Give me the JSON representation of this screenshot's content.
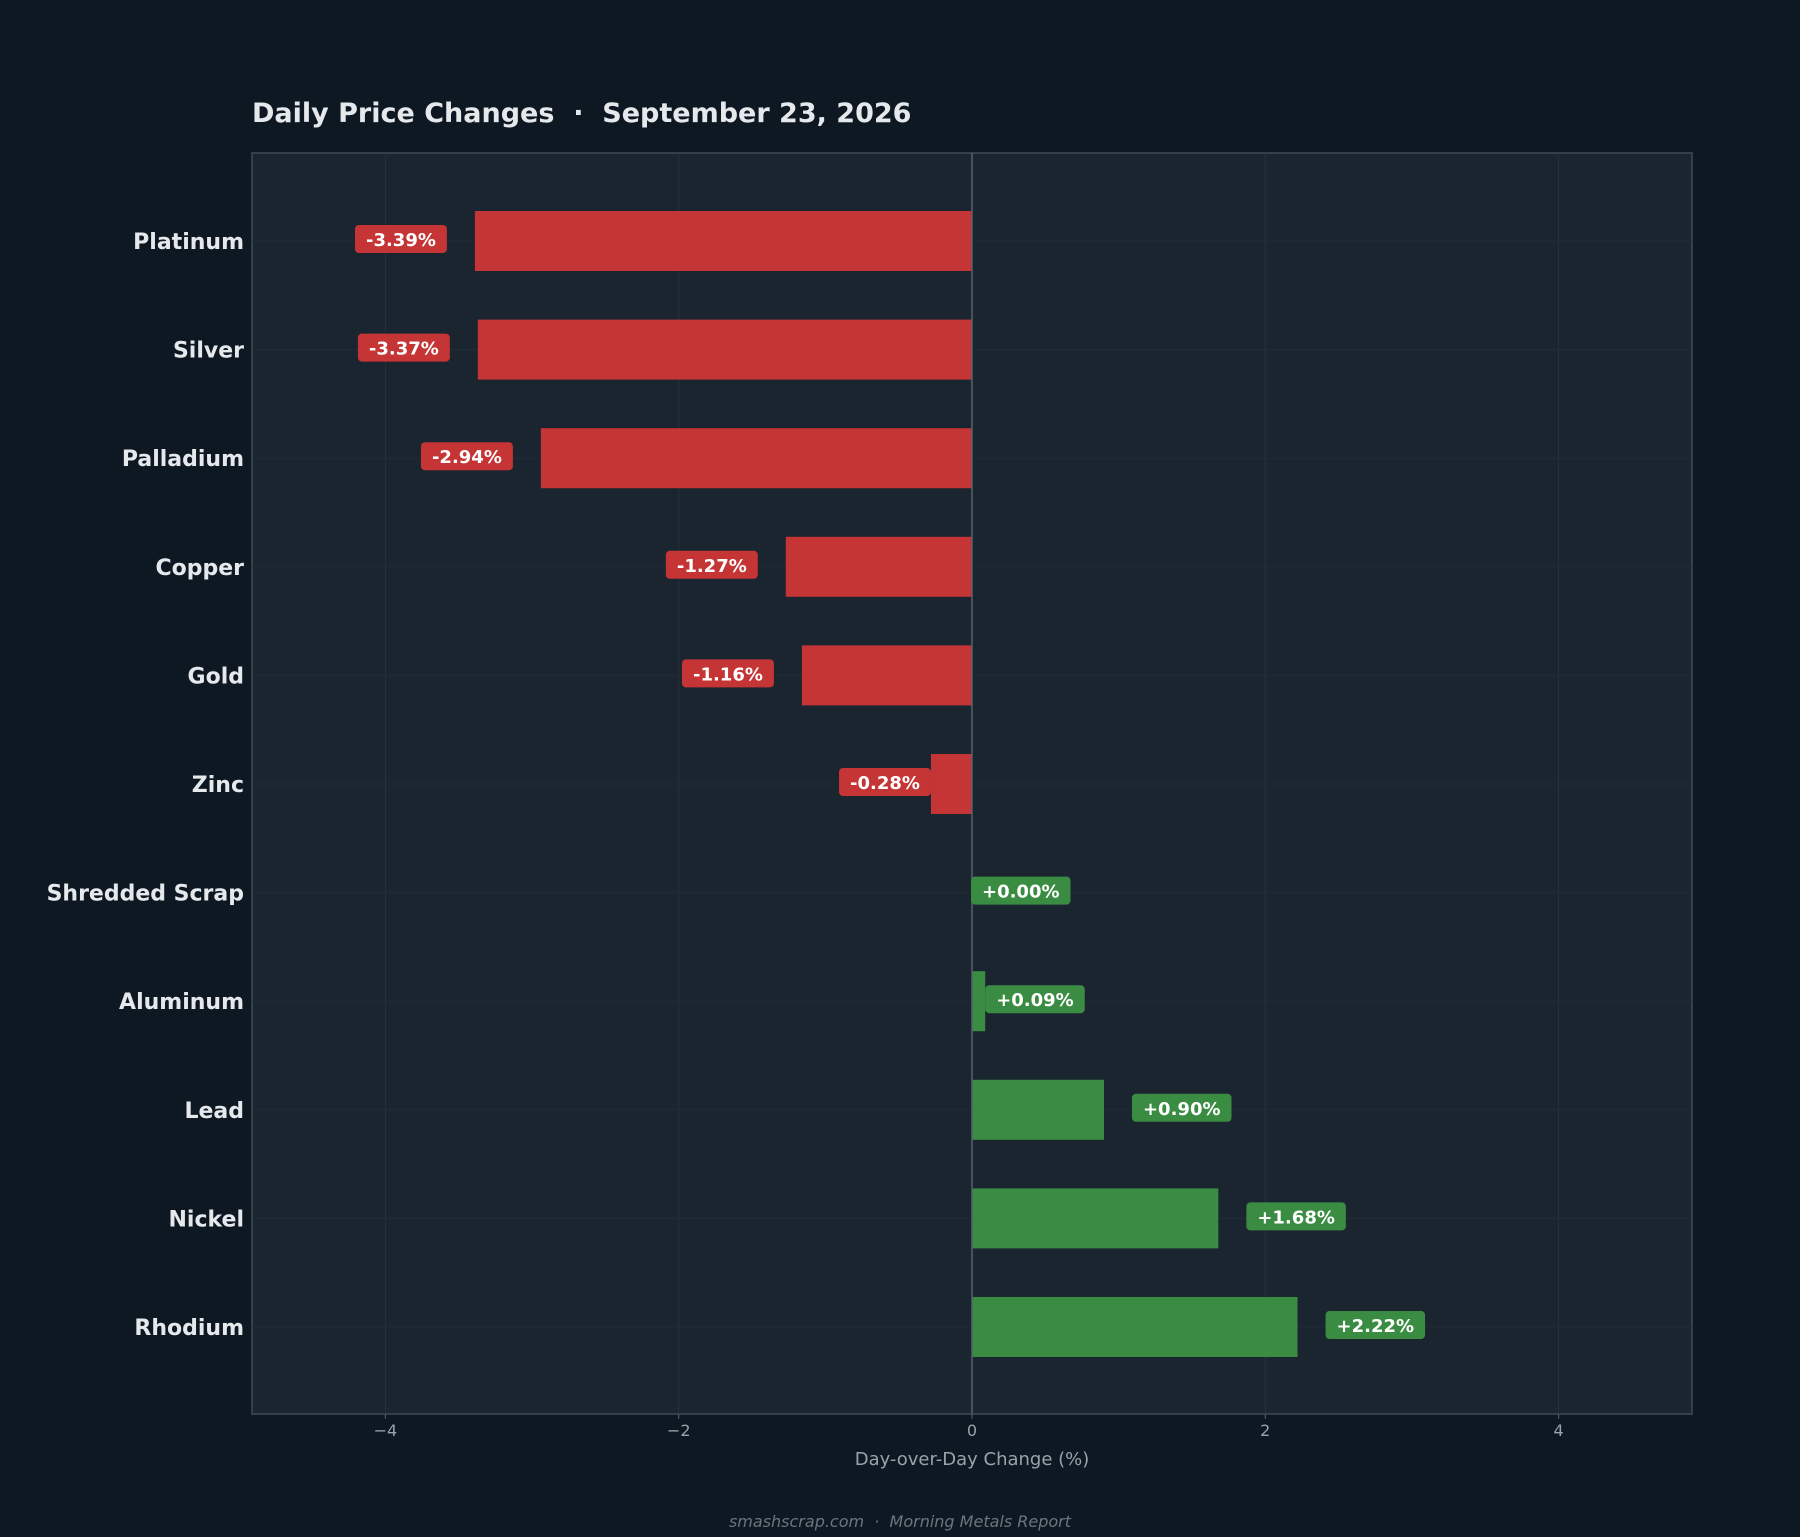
{
  "chart_data": {
    "type": "bar",
    "orientation": "horizontal",
    "title": "Daily Price Changes  ·  September 23, 2026",
    "xlabel": "Day-over-Day Change (%)",
    "ylabel": "",
    "xlim": [
      -4.91,
      4.91
    ],
    "xticks": [
      -4,
      -2,
      0,
      2,
      4
    ],
    "xtick_labels": [
      "−4",
      "−2",
      "0",
      "2",
      "4"
    ],
    "grid": true,
    "legend": "none",
    "categories": [
      "Platinum",
      "Silver",
      "Palladium",
      "Copper",
      "Gold",
      "Zinc",
      "Shredded Scrap",
      "Aluminum",
      "Lead",
      "Nickel",
      "Rhodium"
    ],
    "values": [
      -3.39,
      -3.37,
      -2.94,
      -1.27,
      -1.16,
      -0.28,
      0.0,
      0.09,
      0.9,
      1.68,
      2.22
    ],
    "data_labels": [
      "-3.39%",
      "-3.37%",
      "-2.94%",
      "-1.27%",
      "-1.16%",
      "-0.28%",
      "+0.00%",
      "+0.09%",
      "+0.90%",
      "+1.68%",
      "+2.22%"
    ],
    "colors": {
      "negative": "#c63535",
      "positive": "#3b8c43",
      "background": "#0e1822",
      "plot_background": "#1b2530",
      "text": "#e6e9ec",
      "muted": "#9aa3ab"
    }
  },
  "footer": "smashscrap.com  ·  Morning Metals Report"
}
